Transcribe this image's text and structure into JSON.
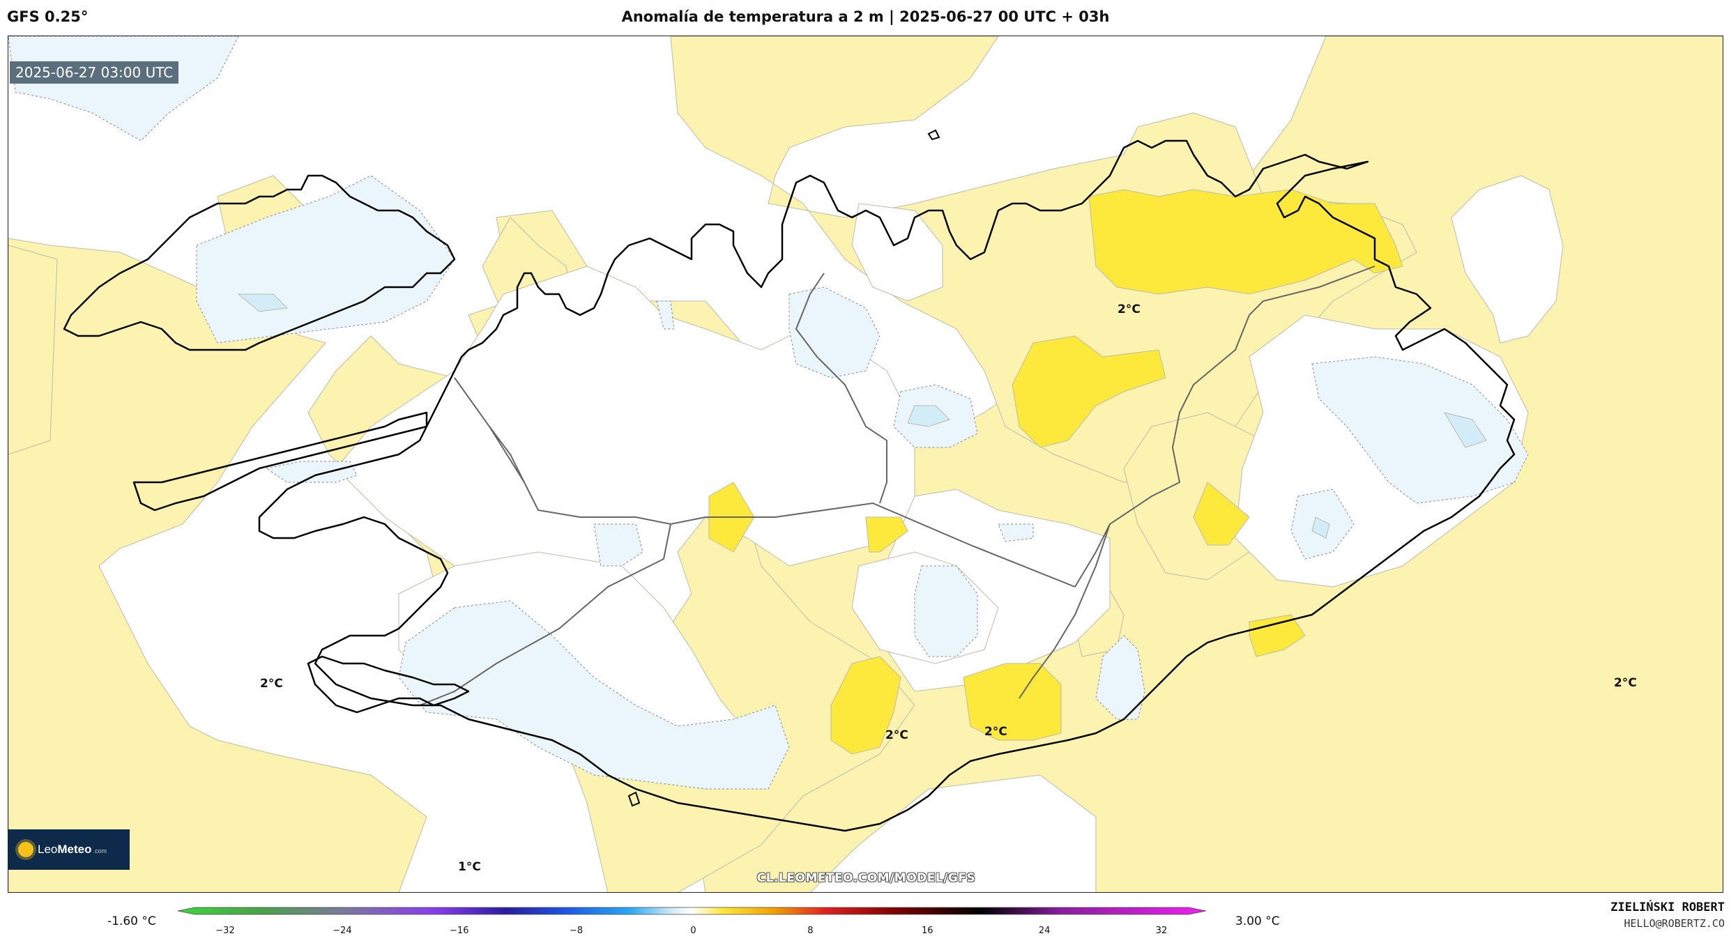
{
  "header": {
    "model": "GFS 0.25°",
    "title": "Anomalía de temperatura a 2 m | 2025-06-27 00 UTC + 03h"
  },
  "map": {
    "timestamp": "2025-06-27 03:00 UTC",
    "contour_labels": [
      "2°C",
      "2°C",
      "2°C",
      "2°C",
      "2°C",
      "2°C",
      "1°C"
    ],
    "logo": {
      "name": "LeoMeteo",
      "prefix": "Leo",
      "suffix": "Meteo",
      "tld": ".com"
    },
    "url": "CL.LEOMETEO.COM/MODEL/GFS",
    "colors": {
      "light_yellow": "#fdf3b0",
      "yellow": "#fde83c",
      "light_blue": "#eaf5fc",
      "blue": "#d2ecf8",
      "coast": "#000000"
    }
  },
  "colorbar": {
    "min_label": "-1.60 °C",
    "max_label": "3.00 °C",
    "ticks": [
      "−32",
      "−24",
      "−16",
      "−8",
      "0",
      "8",
      "16",
      "24",
      "32"
    ],
    "range": [
      -32,
      32
    ],
    "stops": [
      "#3cd63c",
      "#7a7a9a",
      "#8a3cf0",
      "#1c1ca0",
      "#1e5ae6",
      "#2aaaf0",
      "#cfeaf7",
      "#ffffff",
      "#fde83c",
      "#f0a000",
      "#e02020",
      "#7a0000",
      "#000000",
      "#8a1ea0",
      "#f020f0"
    ]
  },
  "credits": {
    "author": "ZIELIŃSKI ROBERT",
    "contact": "HELLO@ROBERTZ.CO"
  }
}
